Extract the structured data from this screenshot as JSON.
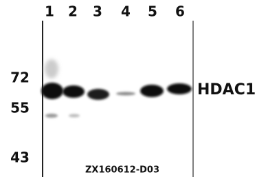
{
  "lanes": [
    "1",
    "2",
    "3",
    "4",
    "5",
    "6"
  ],
  "markers": [
    "72",
    "55",
    "43"
  ],
  "protein_label": "HDAC1",
  "code": "ZX160612-D03"
}
